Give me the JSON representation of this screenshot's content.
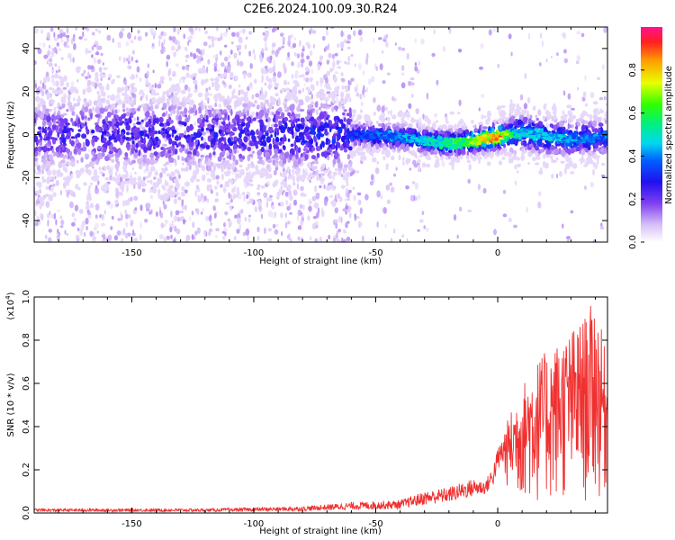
{
  "title": "C2E6.2024.100.09.30.R24",
  "chart_data": [
    {
      "type": "heatmap",
      "xlabel": "Height of straight line (km)",
      "ylabel": "Frequency (Hz)",
      "xlim": [
        -190,
        45
      ],
      "ylim": [
        -50,
        50
      ],
      "xticks": [
        -150,
        -100,
        -50,
        0
      ],
      "yticks": [
        -40,
        -20,
        0,
        20,
        40
      ],
      "colorbar": {
        "label": "Normalized spectral amplitude",
        "range": [
          0.0,
          1.0
        ],
        "ticks": [
          "0.0",
          "0.2",
          "0.4",
          "0.6",
          "0.8"
        ],
        "colors": [
          "#ffffff",
          "#e6d4fa",
          "#a070f0",
          "#5a10e0",
          "#1020ff",
          "#00d0f0",
          "#00f070",
          "#40ff00",
          "#e0ff00",
          "#ffa000",
          "#ff3000",
          "#ff1090"
        ]
      },
      "ridge": {
        "description_x": [
          -190,
          -150,
          -100,
          -60,
          -40,
          -30,
          -20,
          -10,
          0,
          5,
          10,
          20,
          30,
          45
        ],
        "center_freq_hz": [
          0,
          0,
          0,
          0,
          -1,
          -3,
          -4,
          -3,
          -1,
          0,
          1,
          -1,
          -2,
          -1
        ],
        "peak_amplitude": [
          0.25,
          0.3,
          0.3,
          0.35,
          0.45,
          0.5,
          0.6,
          0.7,
          0.95,
          0.6,
          0.5,
          0.5,
          0.45,
          0.4
        ]
      }
    },
    {
      "type": "line",
      "xlabel": "Height of straight line (km)",
      "ylabel": "SNR (10 * v/v)",
      "yscale_label": "(x10",
      "yscale_exp": "4",
      "yscale_close": ")",
      "xlim": [
        -190,
        45
      ],
      "ylim": [
        0,
        1.0
      ],
      "xticks": [
        -150,
        -100,
        -50,
        0
      ],
      "yticks": [
        "0.0",
        "0.2",
        "0.4",
        "0.6",
        "0.8",
        "1.0"
      ],
      "series": [
        {
          "color": "#f03030",
          "envelope_x": [
            -190,
            -120,
            -80,
            -60,
            -40,
            -30,
            -20,
            -10,
            -5,
            -2,
            0,
            3,
            8,
            15,
            25,
            35,
            40,
            45
          ],
          "envelope_low": [
            0.0,
            0.0,
            0.0,
            0.0,
            0.0,
            0.01,
            0.02,
            0.04,
            0.06,
            0.08,
            0.15,
            0.12,
            0.05,
            0.02,
            0.02,
            0.02,
            0.02,
            0.05
          ],
          "envelope_high": [
            0.02,
            0.02,
            0.03,
            0.05,
            0.06,
            0.1,
            0.12,
            0.16,
            0.15,
            0.22,
            0.3,
            0.4,
            0.55,
            0.7,
            0.8,
            0.9,
            1.0,
            0.7
          ]
        }
      ]
    }
  ]
}
